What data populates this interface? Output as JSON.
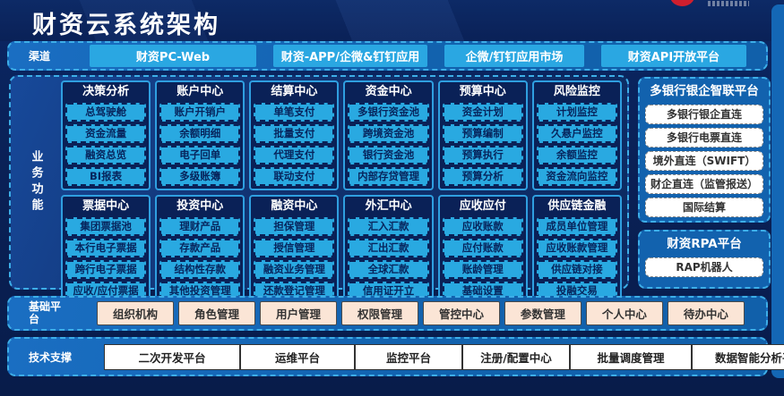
{
  "header": {
    "title": "财资云系统架构"
  },
  "channels": {
    "label": "渠道",
    "items": [
      "财资PC-Web",
      "财资-APP/企微&钉钉应用",
      "企微/钉钉应用市场",
      "财资API开放平台"
    ]
  },
  "business": {
    "label": "业务功能",
    "rows": [
      [
        {
          "title": "决策分析",
          "items": [
            "总驾驶舱",
            "资金流量",
            "融资总览",
            "BI报表"
          ]
        },
        {
          "title": "账户中心",
          "items": [
            "账户开销户",
            "余额明细",
            "电子回单",
            "多级账簿"
          ]
        },
        {
          "title": "结算中心",
          "items": [
            "单笔支付",
            "批量支付",
            "代理支付",
            "联动支付"
          ]
        },
        {
          "title": "资金中心",
          "items": [
            "多银行资金池",
            "跨境资金池",
            "银行资金池",
            "内部存贷管理"
          ]
        },
        {
          "title": "预算中心",
          "items": [
            "资金计划",
            "预算编制",
            "预算执行",
            "预算分析"
          ]
        },
        {
          "title": "风险监控",
          "items": [
            "计划监控",
            "久悬户监控",
            "余额监控",
            "资金流向监控"
          ]
        }
      ],
      [
        {
          "title": "票据中心",
          "items": [
            "集团票据池",
            "本行电子票据",
            "跨行电子票据",
            "应收/应付票据"
          ]
        },
        {
          "title": "投资中心",
          "items": [
            "理财产品",
            "存款产品",
            "结构性存款",
            "其他投资管理"
          ]
        },
        {
          "title": "融资中心",
          "items": [
            "担保管理",
            "授信管理",
            "融资业务管理",
            "还款登记管理"
          ]
        },
        {
          "title": "外汇中心",
          "items": [
            "汇入汇款",
            "汇出汇款",
            "全球汇款",
            "信用证开立"
          ]
        },
        {
          "title": "应收应付",
          "items": [
            "应收账款",
            "应付账款",
            "账龄管理",
            "基础设置"
          ]
        },
        {
          "title": "供应链金融",
          "items": [
            "成员单位管理",
            "应收账款管理",
            "供应链对接",
            "投融交易"
          ]
        }
      ]
    ]
  },
  "right_panels": [
    {
      "title": "多银行银企智联平台",
      "items": [
        "多银行银企直连",
        "多银行电票直连",
        "境外直连（SWIFT）",
        "财企直连（监管报送）",
        "国际结算"
      ]
    },
    {
      "title": "财资RPA平台",
      "items": [
        "RAP机器人"
      ]
    }
  ],
  "base_platform": {
    "label": "基础平台",
    "items": [
      "组织机构",
      "角色管理",
      "用户管理",
      "权限管理",
      "管控中心",
      "参数管理",
      "个人中心",
      "待办中心"
    ]
  },
  "tech_support": {
    "label": "技术支撑",
    "items": [
      "二次开发平台",
      "运维平台",
      "监控平台",
      "注册/配置中心",
      "批量调度管理",
      "数据智能分析平台"
    ]
  },
  "colors": {
    "page_navy": "#0A2157",
    "panel_blue": "#1262AE",
    "accent_cyan": "#29A9E1",
    "dashed_border": "#3DAEE8",
    "module_box_navy": "#0A2157",
    "peach_item": "#FBE5D6",
    "white_item": "#FFFFFF",
    "logo_red": "#CF1F2E"
  }
}
